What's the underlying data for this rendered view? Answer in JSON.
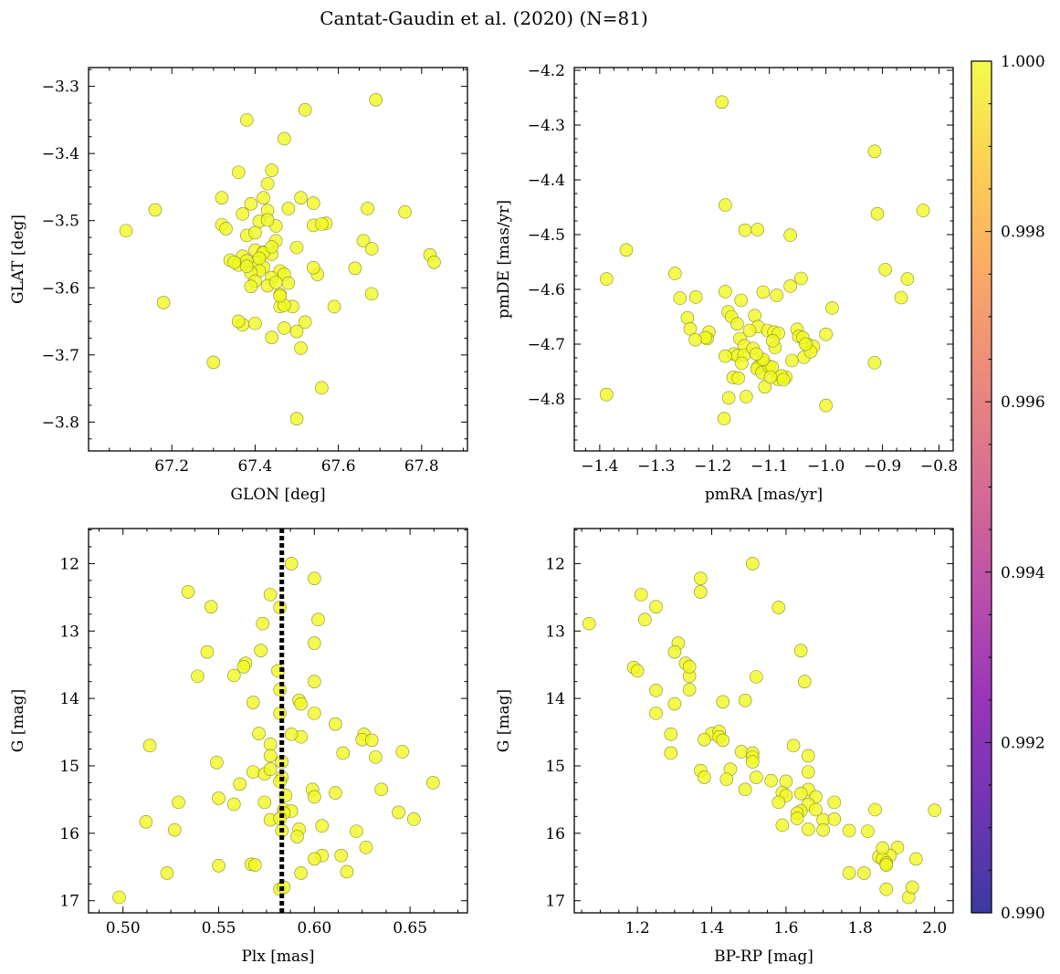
{
  "figure": {
    "title": "Cantat-Gaudin et al. (2020) (N=81)"
  },
  "colorbar": {
    "colormap": "plasma",
    "range": [
      0.99,
      1.0
    ],
    "ticks": [
      "0.990",
      "0.992",
      "0.994",
      "0.996",
      "0.998",
      "1.000"
    ],
    "tick_values": [
      0.99,
      0.992,
      0.994,
      0.996,
      0.998,
      1.0
    ]
  },
  "colors": {
    "point": "#f0f921",
    "edge": "#8a8a30",
    "vline": "#000000"
  },
  "chart_data": [
    {
      "type": "scatter",
      "name": "glon-glat",
      "xlabel": "GLON [deg]",
      "ylabel": "GLAT [deg]",
      "xlim": [
        67.0,
        67.91
      ],
      "ylim": [
        -3.843,
        -3.272
      ],
      "invert_y": false,
      "xticks": [
        67.2,
        67.4,
        67.6,
        67.8
      ],
      "xtick_labels": [
        "67.2",
        "67.4",
        "67.6",
        "67.8"
      ],
      "yticks": [
        -3.3,
        -3.4,
        -3.5,
        -3.6,
        -3.7,
        -3.8
      ],
      "ytick_labels": [
        "−3.3",
        "−3.4",
        "−3.5",
        "−3.6",
        "−3.7",
        "−3.8"
      ],
      "x": [
        67.69,
        67.52,
        67.38,
        67.47,
        67.36,
        67.44,
        67.43,
        67.32,
        67.51,
        67.54,
        67.39,
        67.37,
        67.48,
        67.42,
        67.43,
        67.09,
        67.16,
        67.32,
        67.45,
        67.41,
        67.43,
        67.54,
        67.57,
        67.56,
        67.67,
        67.76,
        67.66,
        67.38,
        67.45,
        67.4,
        67.42,
        67.44,
        67.34,
        67.36,
        67.37,
        67.4,
        67.38,
        67.55,
        67.54,
        67.64,
        67.68,
        67.82,
        67.83,
        67.46,
        67.42,
        67.41,
        67.39,
        67.44,
        67.47,
        67.43,
        67.4,
        67.46,
        67.48,
        67.45,
        67.18,
        67.59,
        67.68,
        67.46,
        67.37,
        67.36,
        67.4,
        67.49,
        67.47,
        67.44,
        67.52,
        67.51,
        67.3,
        67.56,
        67.5,
        67.47,
        67.5,
        67.42,
        67.4,
        67.46,
        67.38,
        67.35,
        67.39,
        67.33,
        67.41,
        67.44,
        67.5
      ],
      "y": [
        -3.32,
        -3.335,
        -3.35,
        -3.378,
        -3.428,
        -3.425,
        -3.445,
        -3.466,
        -3.466,
        -3.474,
        -3.475,
        -3.49,
        -3.482,
        -3.466,
        -3.485,
        -3.515,
        -3.484,
        -3.506,
        -3.508,
        -3.501,
        -3.499,
        -3.507,
        -3.504,
        -3.505,
        -3.482,
        -3.487,
        -3.53,
        -3.522,
        -3.53,
        -3.544,
        -3.547,
        -3.55,
        -3.559,
        -3.566,
        -3.553,
        -3.563,
        -3.56,
        -3.58,
        -3.57,
        -3.571,
        -3.542,
        -3.551,
        -3.562,
        -3.575,
        -3.569,
        -3.575,
        -3.578,
        -3.585,
        -3.58,
        -3.597,
        -3.59,
        -3.61,
        -3.593,
        -3.592,
        -3.622,
        -3.628,
        -3.609,
        -3.628,
        -3.655,
        -3.65,
        -3.653,
        -3.628,
        -3.66,
        -3.674,
        -3.651,
        -3.69,
        -3.711,
        -3.749,
        -3.795,
        -3.626,
        -3.665,
        -3.548,
        -3.518,
        -3.612,
        -3.568,
        -3.562,
        -3.598,
        -3.512,
        -3.556,
        -3.539,
        -3.54
      ]
    },
    {
      "type": "scatter",
      "name": "pmra-pmde",
      "xlabel": "pmRA [mas/yr]",
      "ylabel": "pmDE [mas/yr]",
      "xlim": [
        -1.445,
        -0.775
      ],
      "ylim": [
        -4.895,
        -4.195
      ],
      "invert_y": false,
      "xticks": [
        -1.4,
        -1.3,
        -1.2,
        -1.1,
        -1.0,
        -0.9,
        -0.8
      ],
      "xtick_labels": [
        "−1.4",
        "−1.3",
        "−1.2",
        "−1.1",
        "−1.0",
        "−0.9",
        "−0.8"
      ],
      "yticks": [
        -4.2,
        -4.3,
        -4.4,
        -4.5,
        -4.6,
        -4.7,
        -4.8
      ],
      "ytick_labels": [
        "−4.2",
        "−4.3",
        "−4.4",
        "−4.5",
        "−4.6",
        "−4.7",
        "−4.8"
      ],
      "x": [
        -1.184,
        -0.914,
        -1.178,
        -0.909,
        -0.828,
        -1.143,
        -1.121,
        -1.063,
        -1.353,
        -1.388,
        -0.895,
        -0.856,
        -1.267,
        -1.258,
        -1.23,
        -1.178,
        -1.15,
        -1.111,
        -1.087,
        -1.044,
        -1.063,
        -0.867,
        -0.989,
        -1.245,
        -1.173,
        -1.167,
        -1.157,
        -1.207,
        -1.24,
        -1.21,
        -1.126,
        -1.12,
        -1.103,
        -1.092,
        -1.084,
        -1.051,
        -1.048,
        -1.033,
        -1.022,
        -1.0,
        -1.135,
        -1.152,
        -1.144,
        -1.163,
        -1.156,
        -1.145,
        -1.12,
        -1.111,
        -1.101,
        -1.085,
        -1.071,
        -1.041,
        -1.039,
        -1.027,
        -1.164,
        -1.155,
        -1.178,
        -1.122,
        -1.113,
        -1.1,
        -1.095,
        -1.079,
        -1.108,
        -1.098,
        -1.075,
        -1.141,
        -1.172,
        -1.18,
        -1.388,
        -1.0,
        -0.914,
        -1.213,
        -1.231,
        -1.129,
        -1.09,
        -1.111,
        -1.149,
        -1.123,
        -1.094,
        -1.06,
        -1.036
      ],
      "y": [
        -4.258,
        -4.348,
        -4.446,
        -4.462,
        -4.456,
        -4.492,
        -4.491,
        -4.501,
        -4.528,
        -4.581,
        -4.564,
        -4.581,
        -4.571,
        -4.616,
        -4.614,
        -4.604,
        -4.62,
        -4.605,
        -4.611,
        -4.58,
        -4.594,
        -4.615,
        -4.634,
        -4.652,
        -4.641,
        -4.65,
        -4.663,
        -4.678,
        -4.672,
        -4.69,
        -4.648,
        -4.668,
        -4.675,
        -4.678,
        -4.68,
        -4.673,
        -4.686,
        -4.7,
        -4.704,
        -4.682,
        -4.675,
        -4.69,
        -4.703,
        -4.718,
        -4.721,
        -4.72,
        -4.742,
        -4.733,
        -4.744,
        -4.764,
        -4.76,
        -4.688,
        -4.724,
        -4.714,
        -4.761,
        -4.762,
        -4.722,
        -4.745,
        -4.752,
        -4.741,
        -4.742,
        -4.758,
        -4.778,
        -4.76,
        -4.765,
        -4.796,
        -4.798,
        -4.836,
        -4.792,
        -4.812,
        -4.734,
        -4.688,
        -4.692,
        -4.708,
        -4.706,
        -4.728,
        -4.735,
        -4.718,
        -4.694,
        -4.73,
        -4.7
      ]
    },
    {
      "type": "scatter",
      "name": "plx-g",
      "xlabel": "Plx [mas]",
      "ylabel": "G [mag]",
      "xlim": [
        0.482,
        0.68
      ],
      "ylim": [
        11.48,
        17.18
      ],
      "invert_y": true,
      "xticks": [
        0.5,
        0.55,
        0.6,
        0.65
      ],
      "xtick_labels": [
        "0.50",
        "0.55",
        "0.60",
        "0.65"
      ],
      "yticks": [
        12,
        13,
        14,
        15,
        16,
        17
      ],
      "ytick_labels": [
        "12",
        "13",
        "14",
        "15",
        "16",
        "17"
      ],
      "vline": 0.583,
      "x": [
        0.588,
        0.6,
        0.534,
        0.577,
        0.582,
        0.546,
        0.602,
        0.573,
        0.6,
        0.544,
        0.564,
        0.572,
        0.563,
        0.581,
        0.539,
        0.558,
        0.6,
        0.582,
        0.592,
        0.593,
        0.568,
        0.582,
        0.611,
        0.6,
        0.593,
        0.571,
        0.588,
        0.626,
        0.577,
        0.514,
        0.615,
        0.625,
        0.63,
        0.646,
        0.632,
        0.583,
        0.549,
        0.577,
        0.568,
        0.574,
        0.583,
        0.582,
        0.599,
        0.611,
        0.635,
        0.662,
        0.585,
        0.6,
        0.529,
        0.55,
        0.574,
        0.558,
        0.584,
        0.588,
        0.512,
        0.577,
        0.584,
        0.644,
        0.582,
        0.652,
        0.527,
        0.592,
        0.604,
        0.583,
        0.622,
        0.627,
        0.614,
        0.604,
        0.6,
        0.567,
        0.55,
        0.569,
        0.523,
        0.593,
        0.617,
        0.582,
        0.584,
        0.498,
        0.591,
        0.561,
        0.577
      ],
      "y": [
        12.0,
        12.22,
        12.42,
        12.46,
        12.65,
        12.64,
        12.83,
        12.89,
        13.18,
        13.31,
        13.48,
        13.29,
        13.53,
        13.59,
        13.67,
        13.66,
        13.75,
        13.87,
        14.03,
        14.08,
        14.06,
        14.22,
        14.38,
        14.22,
        14.57,
        14.52,
        14.53,
        14.53,
        14.68,
        14.7,
        14.81,
        14.61,
        14.62,
        14.79,
        14.87,
        14.94,
        14.95,
        14.85,
        15.09,
        15.12,
        15.17,
        15.23,
        15.35,
        15.4,
        15.35,
        15.25,
        15.44,
        15.46,
        15.54,
        15.48,
        15.54,
        15.57,
        15.65,
        15.67,
        15.83,
        15.8,
        15.7,
        15.69,
        15.78,
        15.79,
        15.95,
        15.94,
        15.89,
        15.96,
        15.97,
        16.21,
        16.33,
        16.33,
        16.38,
        16.46,
        16.48,
        16.47,
        16.59,
        16.59,
        16.57,
        16.83,
        16.8,
        16.95,
        16.05,
        15.27,
        15.05
      ]
    },
    {
      "type": "scatter",
      "name": "bprp-g",
      "xlabel": "BP-RP [mag]",
      "ylabel": "G [mag]",
      "xlim": [
        1.03,
        2.05
      ],
      "ylim": [
        11.48,
        17.18
      ],
      "invert_y": true,
      "xticks": [
        1.2,
        1.4,
        1.6,
        1.8,
        2.0
      ],
      "xtick_labels": [
        "1.2",
        "1.4",
        "1.6",
        "1.8",
        "2.0"
      ],
      "yticks": [
        12,
        13,
        14,
        15,
        16,
        17
      ],
      "ytick_labels": [
        "12",
        "13",
        "14",
        "15",
        "16",
        "17"
      ],
      "x": [
        1.51,
        1.37,
        1.37,
        1.21,
        1.25,
        1.58,
        1.22,
        1.07,
        1.31,
        1.3,
        1.64,
        1.33,
        1.34,
        1.19,
        1.2,
        1.34,
        1.52,
        1.65,
        1.49,
        1.34,
        1.25,
        1.3,
        1.43,
        1.25,
        1.4,
        1.38,
        1.42,
        1.42,
        1.29,
        1.43,
        1.48,
        1.29,
        1.51,
        1.62,
        1.51,
        1.51,
        1.66,
        1.66,
        1.45,
        1.37,
        1.38,
        1.44,
        1.52,
        1.56,
        1.6,
        1.66,
        1.49,
        1.59,
        1.6,
        1.64,
        1.68,
        1.73,
        1.66,
        1.58,
        1.64,
        1.68,
        1.84,
        1.7,
        1.73,
        1.63,
        1.63,
        2.0,
        1.59,
        1.7,
        1.66,
        1.77,
        1.82,
        1.9,
        1.88,
        1.85,
        1.87,
        1.95,
        1.86,
        1.77,
        1.81,
        1.87,
        1.87,
        1.87,
        1.93,
        1.94,
        1.86
      ],
      "y": [
        12.0,
        12.22,
        12.42,
        12.46,
        12.64,
        12.65,
        12.83,
        12.89,
        13.18,
        13.31,
        13.29,
        13.48,
        13.67,
        13.54,
        13.59,
        13.87,
        13.68,
        13.75,
        14.03,
        13.53,
        13.88,
        14.08,
        14.05,
        14.22,
        14.52,
        14.61,
        14.49,
        14.57,
        14.53,
        14.62,
        14.79,
        14.81,
        14.81,
        14.7,
        14.87,
        14.94,
        14.85,
        15.09,
        15.05,
        15.07,
        15.17,
        15.2,
        15.17,
        15.22,
        15.23,
        15.35,
        15.35,
        15.4,
        15.44,
        15.41,
        15.46,
        15.54,
        15.57,
        15.54,
        15.67,
        15.65,
        15.65,
        15.8,
        15.79,
        15.7,
        15.78,
        15.66,
        15.88,
        15.95,
        15.94,
        15.96,
        15.97,
        16.21,
        16.33,
        16.35,
        16.46,
        16.38,
        16.38,
        16.59,
        16.59,
        16.44,
        16.47,
        16.83,
        16.95,
        16.8,
        16.22
      ]
    }
  ]
}
